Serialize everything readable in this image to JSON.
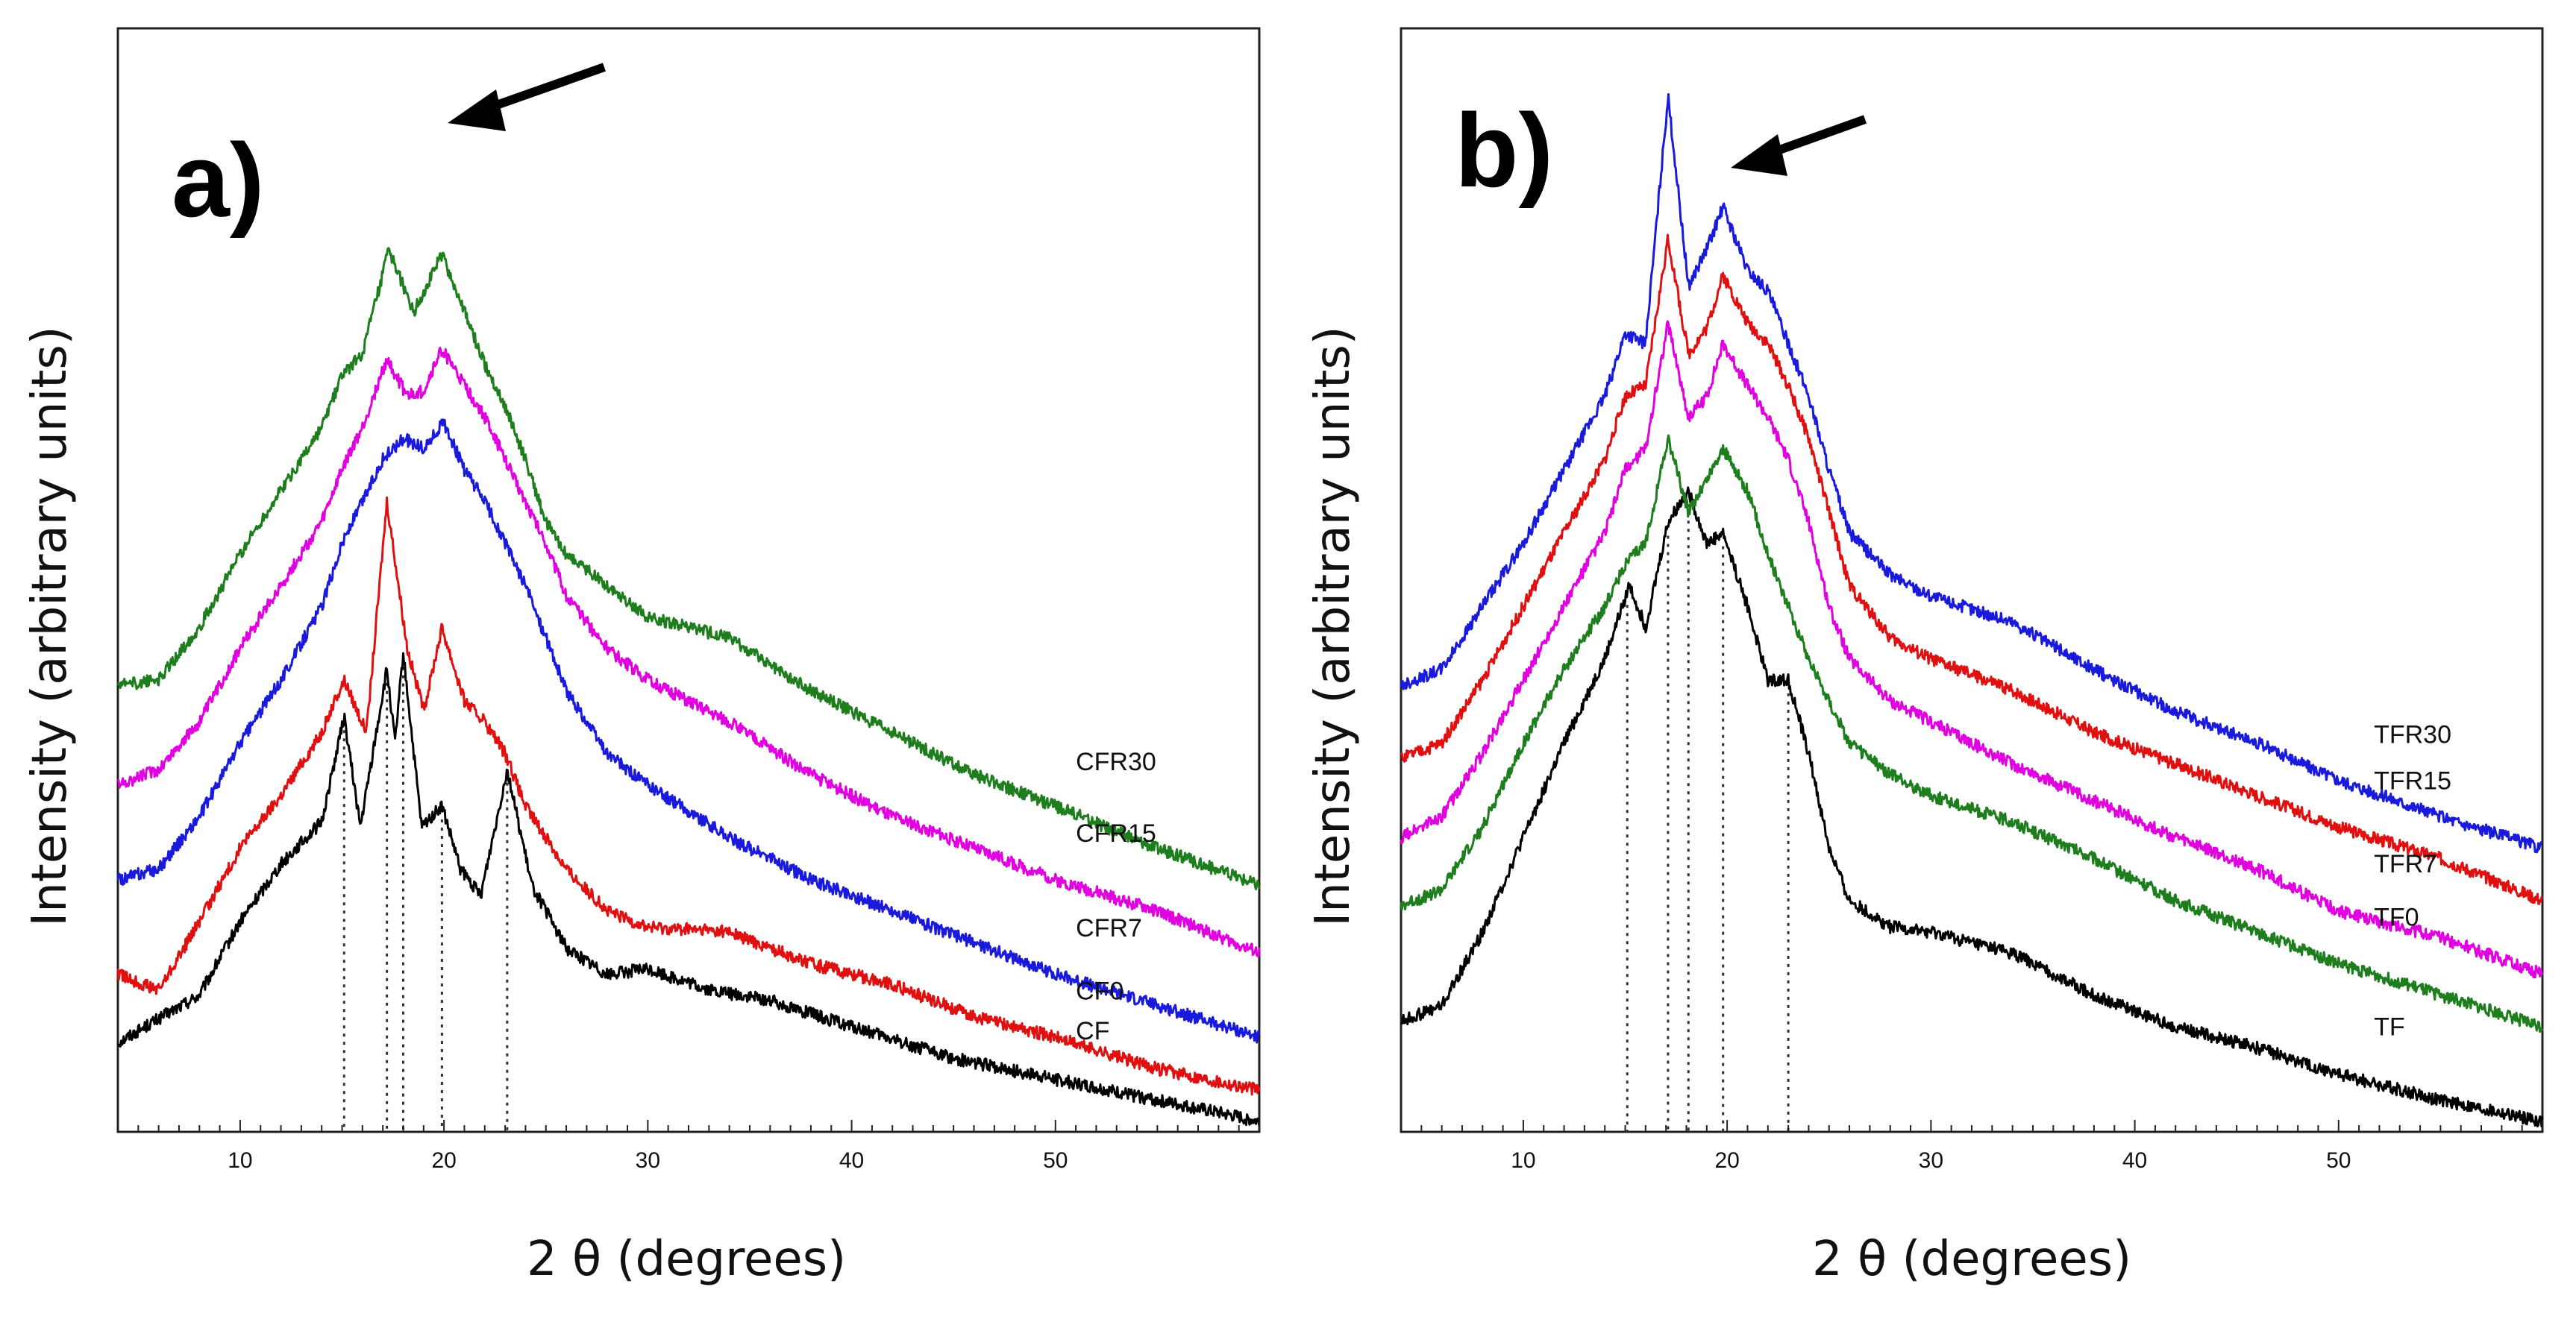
{
  "chart_data": [
    {
      "type": "line",
      "panel": "a)",
      "xlabel": "2 θ (degrees)",
      "ylabel": "Intensity (arbitrary units)",
      "xlim": [
        4,
        60
      ],
      "xticks": [
        10,
        20,
        30,
        40,
        50
      ],
      "ylim": [
        0,
        10.5
      ],
      "peak_markers": [
        15.1,
        17.2,
        18.0,
        19.9,
        23.1
      ],
      "arrow_target_2theta": 20,
      "series": [
        {
          "name": "CF",
          "color": "#000000",
          "label_x": 51,
          "x": [
            4,
            8,
            10,
            12,
            14,
            15.1,
            15.9,
            17.2,
            17.6,
            18.0,
            18.9,
            19.9,
            20.8,
            21.8,
            23.1,
            24.3,
            26,
            28,
            30,
            33,
            36,
            40,
            45,
            50,
            55,
            60
          ],
          "y": [
            0.85,
            1.3,
            2.0,
            2.55,
            2.95,
            3.95,
            2.9,
            4.4,
            3.7,
            4.55,
            2.9,
            3.1,
            2.5,
            2.25,
            3.45,
            2.35,
            1.75,
            1.5,
            1.55,
            1.35,
            1.25,
            1.0,
            0.7,
            0.5,
            0.3,
            0.1
          ]
        },
        {
          "name": "CF0",
          "color": "#e01010",
          "label_x": 51,
          "x": [
            4,
            6,
            8,
            10,
            12,
            14,
            15.1,
            16.2,
            17.2,
            18.2,
            19.0,
            19.9,
            21.0,
            22,
            23,
            24,
            26,
            28,
            30,
            34,
            38,
            42,
            46,
            50,
            55,
            60
          ],
          "y": [
            1.5,
            1.35,
            2.0,
            2.7,
            3.2,
            3.8,
            4.3,
            3.8,
            6.0,
            4.6,
            4.0,
            4.8,
            4.1,
            3.9,
            3.6,
            3.1,
            2.5,
            2.1,
            1.95,
            1.9,
            1.6,
            1.4,
            1.1,
            0.9,
            0.6,
            0.4
          ]
        },
        {
          "name": "CFR7",
          "color": "#1a1adc",
          "label_x": 51,
          "x": [
            4,
            6,
            8,
            10,
            12,
            14,
            15,
            16,
            17,
            18,
            19,
            20,
            21,
            22,
            23,
            24,
            25,
            26,
            28,
            30,
            34,
            38,
            42,
            46,
            50,
            55,
            60
          ],
          "y": [
            2.4,
            2.5,
            3.0,
            3.7,
            4.3,
            5.0,
            5.6,
            6.0,
            6.4,
            6.6,
            6.5,
            6.75,
            6.3,
            6.0,
            5.6,
            5.2,
            4.7,
            4.2,
            3.6,
            3.3,
            2.8,
            2.4,
            2.1,
            1.8,
            1.5,
            1.2,
            0.9
          ]
        },
        {
          "name": "CFR15",
          "color": "#e000e0",
          "label_x": 51,
          "x": [
            4,
            6,
            8,
            10,
            12,
            14,
            15,
            16,
            17.2,
            18.2,
            19.0,
            19.9,
            21,
            22,
            23,
            24,
            25,
            26,
            28,
            30,
            34,
            38,
            42,
            46,
            50,
            55,
            60
          ],
          "y": [
            3.3,
            3.45,
            3.9,
            4.6,
            5.2,
            5.8,
            6.3,
            6.7,
            7.35,
            7.0,
            7.05,
            7.45,
            7.1,
            6.8,
            6.4,
            6.0,
            5.6,
            5.1,
            4.6,
            4.3,
            3.9,
            3.4,
            3.0,
            2.7,
            2.4,
            2.1,
            1.7
          ]
        },
        {
          "name": "CFR30",
          "color": "#1e7e1e",
          "label_x": 51,
          "x": [
            4,
            6,
            8,
            10,
            12,
            14,
            15,
            16,
            17.3,
            18.5,
            19.9,
            21,
            22,
            23,
            24,
            25,
            26,
            28,
            30,
            34,
            38,
            42,
            46,
            50,
            55,
            60
          ],
          "y": [
            4.25,
            4.3,
            4.8,
            5.5,
            6.1,
            6.7,
            7.2,
            7.4,
            8.4,
            7.8,
            8.35,
            7.8,
            7.3,
            6.9,
            6.4,
            5.8,
            5.5,
            5.2,
            4.9,
            4.7,
            4.2,
            3.8,
            3.4,
            3.1,
            2.7,
            2.35
          ]
        }
      ]
    },
    {
      "type": "line",
      "panel": "b)",
      "xlabel": "2 θ (degrees)",
      "ylabel": "Intensity (arbitrary units)",
      "xlim": [
        4,
        60
      ],
      "xticks": [
        10,
        20,
        30,
        40,
        50
      ],
      "ylim": [
        0,
        10.5
      ],
      "peak_markers": [
        15.1,
        17.1,
        18.1,
        19.8,
        23.0
      ],
      "arrow_target_2theta": 20,
      "series": [
        {
          "name": "TF",
          "color": "#000000",
          "label_x": 51,
          "x": [
            4,
            6,
            8,
            10,
            12,
            14,
            15.2,
            16,
            17.1,
            18.1,
            19.0,
            19.8,
            21,
            22,
            23,
            24,
            25,
            26,
            28,
            30,
            34,
            38,
            42,
            46,
            50,
            55,
            60
          ],
          "y": [
            1.05,
            1.2,
            1.9,
            2.8,
            3.7,
            4.5,
            5.2,
            4.8,
            5.8,
            6.1,
            5.6,
            5.7,
            5.0,
            4.3,
            4.3,
            3.6,
            2.7,
            2.2,
            1.95,
            1.9,
            1.7,
            1.3,
            1.0,
            0.8,
            0.55,
            0.3,
            0.1
          ]
        },
        {
          "name": "TF0",
          "color": "#1e7e1e",
          "label_x": 51,
          "x": [
            4,
            6,
            8,
            10,
            12,
            14,
            15,
            16,
            17.1,
            18.1,
            19.0,
            19.8,
            21,
            22,
            23,
            24,
            25,
            26,
            28,
            30,
            34,
            38,
            42,
            46,
            50,
            55,
            60
          ],
          "y": [
            2.15,
            2.3,
            2.9,
            3.7,
            4.4,
            5.0,
            5.4,
            5.6,
            6.6,
            5.9,
            6.2,
            6.5,
            6.1,
            5.5,
            5.0,
            4.5,
            4.1,
            3.7,
            3.4,
            3.2,
            2.95,
            2.6,
            2.2,
            1.9,
            1.6,
            1.3,
            1.0
          ]
        },
        {
          "name": "TFR7",
          "color": "#e000e0",
          "label_x": 51,
          "x": [
            4,
            6,
            8,
            10,
            12,
            14,
            15,
            16,
            17.1,
            18.1,
            19.0,
            19.8,
            21,
            22,
            23,
            24,
            25,
            26,
            28,
            30,
            34,
            38,
            42,
            46,
            50,
            55,
            60
          ],
          "y": [
            2.8,
            3.0,
            3.6,
            4.3,
            5.0,
            5.7,
            6.3,
            6.5,
            7.7,
            6.8,
            7.0,
            7.5,
            7.1,
            6.8,
            6.4,
            5.8,
            5.0,
            4.5,
            4.1,
            3.9,
            3.5,
            3.15,
            2.8,
            2.5,
            2.1,
            1.85,
            1.5
          ]
        },
        {
          "name": "TFR15",
          "color": "#e01010",
          "label_x": 51,
          "x": [
            4,
            6,
            8,
            10,
            12,
            14,
            15,
            16,
            17.1,
            18.1,
            19.0,
            19.8,
            21,
            22,
            23,
            24,
            25,
            26,
            28,
            30,
            34,
            38,
            42,
            46,
            50,
            55,
            60
          ],
          "y": [
            3.55,
            3.7,
            4.3,
            5.0,
            5.7,
            6.4,
            7.0,
            7.1,
            8.5,
            7.4,
            7.65,
            8.15,
            7.7,
            7.5,
            7.1,
            6.6,
            5.9,
            5.2,
            4.7,
            4.5,
            4.2,
            3.8,
            3.5,
            3.2,
            2.9,
            2.6,
            2.2
          ]
        },
        {
          "name": "TFR30",
          "color": "#1a1adc",
          "label_x": 51,
          "x": [
            4,
            6,
            8,
            10,
            12,
            14,
            15,
            16,
            17.1,
            18.1,
            19.0,
            19.8,
            21,
            22,
            23,
            24,
            25,
            26,
            28,
            30,
            34,
            38,
            42,
            46,
            50,
            55,
            60
          ],
          "y": [
            4.25,
            4.4,
            5.0,
            5.6,
            6.3,
            7.0,
            7.6,
            7.5,
            9.85,
            8.05,
            8.4,
            8.8,
            8.2,
            8.0,
            7.5,
            7.0,
            6.3,
            5.7,
            5.3,
            5.1,
            4.85,
            4.4,
            4.0,
            3.7,
            3.35,
            3.0,
            2.7
          ]
        }
      ]
    }
  ]
}
